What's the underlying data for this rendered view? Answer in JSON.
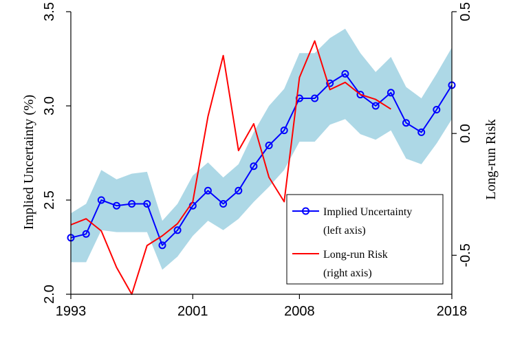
{
  "chart_data": {
    "type": "line",
    "x": [
      1993,
      1994,
      1995,
      1996,
      1997,
      1998,
      1999,
      2000,
      2001,
      2002,
      2003,
      2004,
      2005,
      2006,
      2007,
      2008,
      2009,
      2010,
      2011,
      2012,
      2013,
      2014,
      2015,
      2016,
      2017,
      2018
    ],
    "xticks": [
      "1993",
      "2001",
      "2008",
      "2018"
    ],
    "xlim": [
      1993,
      2018
    ],
    "ylabel_left": "Implied Uncertainty (%)",
    "ylabel_right": "Long-run Risk",
    "ylim_left": [
      2.0,
      3.5
    ],
    "ylim_right": [
      -0.66,
      0.5
    ],
    "yticks_left": [
      "2.0",
      "2.5",
      "3.0",
      "3.5"
    ],
    "yticks_right": [
      "-0.5",
      "0.0",
      "0.5"
    ],
    "band": {
      "upper": [
        2.43,
        2.48,
        2.66,
        2.61,
        2.64,
        2.65,
        2.39,
        2.48,
        2.63,
        2.7,
        2.62,
        2.69,
        2.86,
        3.0,
        3.09,
        3.28,
        3.28,
        3.36,
        3.41,
        3.28,
        3.18,
        3.26,
        3.1,
        3.04,
        3.17,
        3.31
      ],
      "lower": [
        2.17,
        2.17,
        2.34,
        2.33,
        2.33,
        2.33,
        2.13,
        2.2,
        2.31,
        2.39,
        2.34,
        2.4,
        2.49,
        2.57,
        2.66,
        2.81,
        2.81,
        2.9,
        2.93,
        2.85,
        2.82,
        2.87,
        2.72,
        2.69,
        2.8,
        2.93
      ],
      "color": "#add8e6"
    },
    "series": [
      {
        "name": "Implied Uncertainty",
        "axis": "left",
        "color": "#0000ff",
        "marker": "circle",
        "values": [
          2.3,
          2.32,
          2.5,
          2.47,
          2.48,
          2.48,
          2.26,
          2.34,
          2.47,
          2.55,
          2.48,
          2.55,
          2.68,
          2.79,
          2.87,
          3.04,
          3.04,
          3.12,
          3.17,
          3.06,
          3.0,
          3.07,
          2.91,
          2.86,
          2.98,
          3.11
        ]
      },
      {
        "name": "Long-run Risk",
        "axis": "right",
        "color": "#ff0000",
        "values": [
          -0.375,
          -0.35,
          -0.4,
          -0.55,
          -0.66,
          -0.46,
          -0.42,
          -0.37,
          -0.28,
          0.07,
          0.32,
          -0.07,
          0.04,
          -0.18,
          -0.28,
          0.23,
          0.38,
          0.18,
          0.21,
          0.16,
          0.14,
          0.1,
          null,
          null,
          null,
          null
        ]
      }
    ],
    "legend": {
      "position": "bottom-right",
      "entries": [
        {
          "label": "Implied Uncertainty",
          "sublabel": "(left axis)"
        },
        {
          "label": "Long-run Risk",
          "sublabel": "(right axis)"
        }
      ]
    },
    "grid": false
  }
}
